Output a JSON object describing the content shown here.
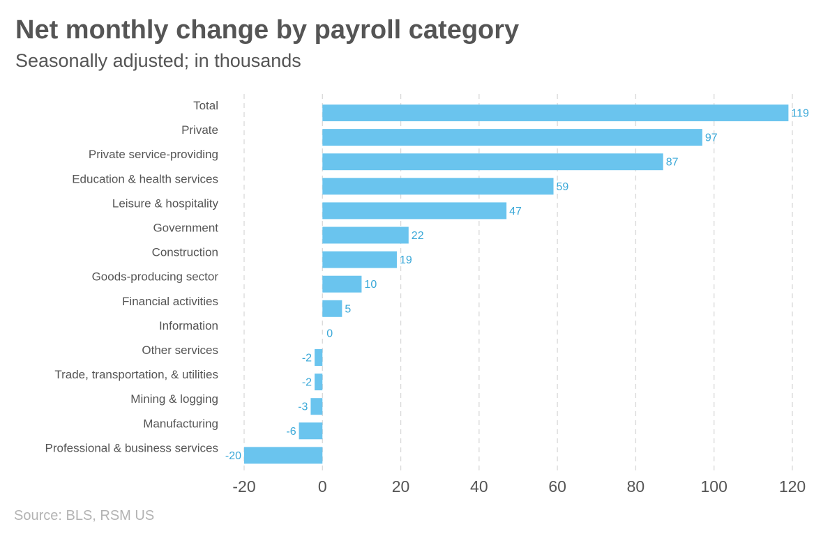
{
  "colors": {
    "bar": "#6ac4ee",
    "value_label": "#3aa8d8",
    "grid": "#d9d9d9",
    "text": "#555555",
    "source": "#b3b3b3"
  },
  "chart_data": {
    "type": "bar",
    "orientation": "horizontal",
    "title": "Net monthly change by payroll category",
    "subtitle": "Seasonally adjusted; in thousands",
    "source": "Source: BLS, RSM US",
    "categories": [
      "Total",
      "Private",
      "Private service-providing",
      "Education & health services",
      "Leisure & hospitality",
      "Government",
      "Construction",
      "Goods-producing sector",
      "Financial activities",
      "Information",
      "Other services",
      "Trade, transportation, & utilities",
      "Mining & logging",
      "Manufacturing",
      "Professional & business services"
    ],
    "values": [
      119,
      97,
      87,
      59,
      47,
      22,
      19,
      10,
      5,
      0,
      -2,
      -2,
      -3,
      -6,
      -20
    ],
    "xlim": [
      -20,
      120
    ],
    "xticks": [
      -20,
      0,
      20,
      40,
      60,
      80,
      100,
      120
    ],
    "grid": "vertical dashed",
    "legend": "none"
  }
}
